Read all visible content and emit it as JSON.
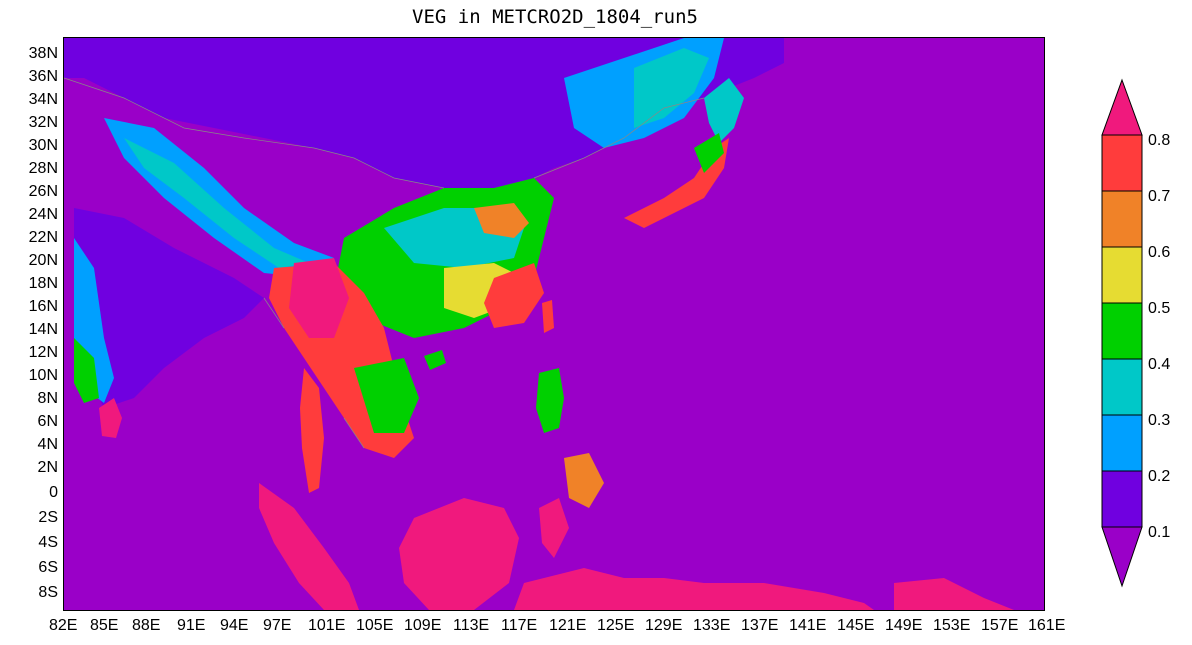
{
  "title": "VEG in METCRO2D_1804_run5",
  "y_axis_labels": [
    "38N",
    "36N",
    "34N",
    "32N",
    "30N",
    "28N",
    "26N",
    "24N",
    "22N",
    "20N",
    "18N",
    "16N",
    "14N",
    "12N",
    "10N",
    "8N",
    "6N",
    "4N",
    "2N",
    "0",
    "2S",
    "4S",
    "6S",
    "8S"
  ],
  "x_axis_labels": [
    "82E",
    "85E",
    "88E",
    "91E",
    "94E",
    "97E",
    "101E",
    "105E",
    "109E",
    "113E",
    "117E",
    "121E",
    "125E",
    "129E",
    "133E",
    "137E",
    "141E",
    "145E",
    "149E",
    "153E",
    "157E",
    "161E"
  ],
  "colorbar": {
    "labels": [
      "0.8",
      "0.7",
      "0.6",
      "0.5",
      "0.4",
      "0.3",
      "0.2",
      "0.1"
    ],
    "colors": {
      "below_0.1": "#9a00c8",
      "0.1-0.2": "#7000e0",
      "0.2-0.3": "#00a0ff",
      "0.3-0.4": "#00c8c8",
      "0.4-0.5": "#00d000",
      "0.5-0.6": "#e6dc32",
      "0.6-0.7": "#f08228",
      "0.7-0.8": "#ff3c3c",
      "above_0.8": "#f0197d"
    }
  }
}
